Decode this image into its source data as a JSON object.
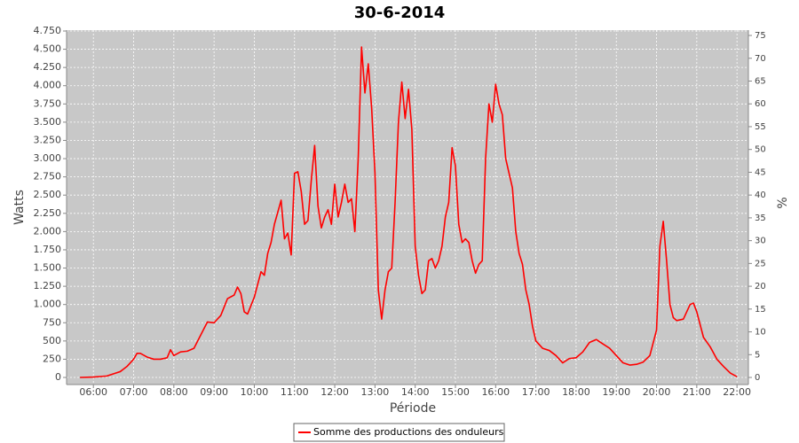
{
  "chart_data": {
    "type": "line",
    "title": "30-6-2014",
    "x_label": "Période",
    "y_label": "Watts",
    "y2_label": "%",
    "x": [
      "05:40",
      "06:00",
      "06:20",
      "06:40",
      "06:50",
      "07:00",
      "07:05",
      "07:10",
      "07:20",
      "07:30",
      "07:40",
      "07:50",
      "07:55",
      "08:00",
      "08:10",
      "08:20",
      "08:30",
      "08:40",
      "08:50",
      "09:00",
      "09:10",
      "09:20",
      "09:30",
      "09:35",
      "09:40",
      "09:45",
      "09:50",
      "10:00",
      "10:10",
      "10:15",
      "10:20",
      "10:25",
      "10:30",
      "10:40",
      "10:45",
      "10:50",
      "10:55",
      "11:00",
      "11:05",
      "11:10",
      "11:15",
      "11:20",
      "11:25",
      "11:30",
      "11:35",
      "11:40",
      "11:45",
      "11:50",
      "11:55",
      "12:00",
      "12:05",
      "12:10",
      "12:15",
      "12:20",
      "12:25",
      "12:30",
      "12:35",
      "12:40",
      "12:45",
      "12:50",
      "12:55",
      "13:00",
      "13:05",
      "13:10",
      "13:15",
      "13:20",
      "13:25",
      "13:30",
      "13:35",
      "13:40",
      "13:45",
      "13:50",
      "13:55",
      "14:00",
      "14:05",
      "14:10",
      "14:15",
      "14:20",
      "14:25",
      "14:30",
      "14:35",
      "14:40",
      "14:45",
      "14:50",
      "14:55",
      "15:00",
      "15:05",
      "15:10",
      "15:15",
      "15:20",
      "15:25",
      "15:30",
      "15:35",
      "15:40",
      "15:45",
      "15:50",
      "15:55",
      "16:00",
      "16:05",
      "16:10",
      "16:15",
      "16:20",
      "16:25",
      "16:30",
      "16:35",
      "16:40",
      "16:45",
      "16:50",
      "16:55",
      "17:00",
      "17:10",
      "17:20",
      "17:30",
      "17:40",
      "17:50",
      "18:00",
      "18:10",
      "18:20",
      "18:30",
      "18:40",
      "18:50",
      "19:00",
      "19:10",
      "19:20",
      "19:30",
      "19:40",
      "19:50",
      "20:00",
      "20:05",
      "20:10",
      "20:15",
      "20:20",
      "20:25",
      "20:30",
      "20:40",
      "20:50",
      "20:55",
      "21:00",
      "21:10",
      "21:20",
      "21:30",
      "21:40",
      "21:50",
      "22:00"
    ],
    "series": [
      {
        "name": "Somme des productions des onduleurs",
        "color": "#ff0000",
        "values": [
          0,
          5,
          20,
          80,
          150,
          250,
          330,
          330,
          280,
          250,
          250,
          270,
          380,
          300,
          350,
          360,
          400,
          580,
          760,
          750,
          850,
          1080,
          1130,
          1240,
          1150,
          900,
          870,
          1100,
          1450,
          1400,
          1700,
          1850,
          2100,
          2430,
          1900,
          1980,
          1680,
          2800,
          2820,
          2550,
          2100,
          2150,
          2700,
          3180,
          2350,
          2050,
          2200,
          2300,
          2100,
          2650,
          2200,
          2400,
          2650,
          2400,
          2450,
          2000,
          3000,
          4530,
          3900,
          4300,
          3700,
          2800,
          1200,
          800,
          1200,
          1450,
          1500,
          2400,
          3500,
          4050,
          3550,
          3950,
          3400,
          1800,
          1400,
          1150,
          1200,
          1600,
          1630,
          1500,
          1600,
          1800,
          2200,
          2400,
          3150,
          2900,
          2100,
          1850,
          1900,
          1850,
          1600,
          1430,
          1550,
          1600,
          3000,
          3750,
          3500,
          4020,
          3750,
          3600,
          3000,
          2800,
          2600,
          2000,
          1700,
          1550,
          1200,
          1000,
          700,
          500,
          400,
          370,
          300,
          200,
          260,
          270,
          350,
          480,
          520,
          460,
          400,
          300,
          200,
          170,
          180,
          210,
          300,
          650,
          1800,
          2140,
          1600,
          1000,
          820,
          780,
          800,
          1000,
          1020,
          900,
          550,
          420,
          250,
          150,
          60,
          10
        ]
      }
    ],
    "xlim": [
      "05:20",
      "22:17"
    ],
    "xticks": [
      "06:00",
      "07:00",
      "08:00",
      "09:00",
      "10:00",
      "11:00",
      "12:00",
      "13:00",
      "14:00",
      "15:00",
      "16:00",
      "17:00",
      "18:00",
      "19:00",
      "20:00",
      "21:00",
      "22:00"
    ],
    "ylim": [
      -97,
      4762
    ],
    "yticks": [
      0,
      250,
      500,
      750,
      {
        "value": 1000,
        "label": "1.000"
      },
      {
        "value": 1250,
        "label": "1.250"
      },
      {
        "value": 1500,
        "label": "1.500"
      },
      {
        "value": 1750,
        "label": "1.750"
      },
      {
        "value": 2000,
        "label": "2.000"
      },
      {
        "value": 2250,
        "label": "2.250"
      },
      {
        "value": 2500,
        "label": "2.500"
      },
      {
        "value": 2750,
        "label": "2.750"
      },
      {
        "value": 3000,
        "label": "3.000"
      },
      {
        "value": 3250,
        "label": "3.250"
      },
      {
        "value": 3500,
        "label": "3.500"
      },
      {
        "value": 3750,
        "label": "3.750"
      },
      {
        "value": 4000,
        "label": "4.000"
      },
      {
        "value": 4250,
        "label": "4.250"
      },
      {
        "value": 4500,
        "label": "4.500"
      },
      {
        "value": 4750,
        "label": "4.750"
      }
    ],
    "y2lim": [
      -1.55,
      76.17
    ],
    "y2ticks": [
      0,
      5,
      10,
      15,
      20,
      25,
      30,
      35,
      40,
      45,
      50,
      55,
      60,
      65,
      70,
      75
    ],
    "grid": true,
    "legend": "bottom"
  }
}
